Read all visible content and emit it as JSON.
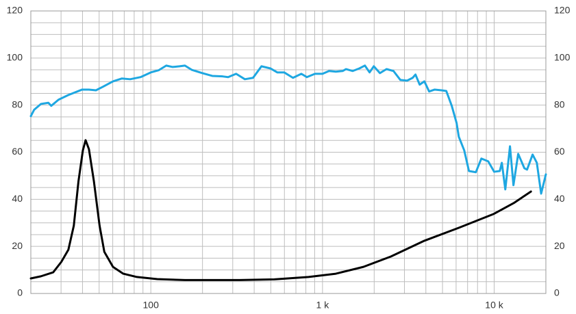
{
  "chart_data": {
    "type": "line",
    "xscale": "log",
    "grid": true,
    "xlim": [
      20,
      20000
    ],
    "xticks": [
      {
        "value": 100,
        "label": "100"
      },
      {
        "value": 1000,
        "label": "1 k"
      },
      {
        "value": 10000,
        "label": "10 k"
      }
    ],
    "x_minor_grid": [
      30,
      40,
      50,
      60,
      70,
      80,
      90,
      200,
      300,
      400,
      500,
      600,
      700,
      800,
      900,
      2000,
      3000,
      4000,
      5000,
      6000,
      7000,
      8000,
      9000
    ],
    "ylim": [
      0,
      120
    ],
    "yticks": [
      0,
      20,
      40,
      60,
      80,
      100,
      120
    ],
    "y_minor_grid": [
      5,
      10,
      15,
      25,
      30,
      35,
      45,
      50,
      55,
      65,
      70,
      75,
      85,
      90,
      95,
      105,
      110,
      115
    ],
    "y2lim": [
      0,
      120
    ],
    "y2ticks": [
      0,
      20,
      40,
      60,
      80,
      100,
      120
    ],
    "series": [
      {
        "color": "#1ea7e1",
        "x": [
          20,
          20.9,
          22.9,
          25.3,
          26.3,
          29.0,
          33.1,
          39.8,
          43.6,
          47.9,
          52.6,
          60.2,
          67.7,
          75.8,
          87.2,
          100,
          111,
          123,
          134,
          147,
          158,
          173,
          199,
          228,
          262,
          282,
          314,
          353,
          394,
          441,
          497,
          545,
          598,
          673,
          753,
          810,
          904,
          1000,
          1092,
          1196,
          1310,
          1370,
          1500,
          1640,
          1766,
          1880,
          1990,
          2160,
          2360,
          2590,
          2840,
          3110,
          3350,
          3480,
          3680,
          3920,
          4180,
          4500,
          4930,
          5260,
          5660,
          6040,
          6220,
          6690,
          7130,
          7820,
          8420,
          9230,
          10000,
          10780,
          11080,
          11610,
          12360,
          12950,
          13800,
          14990,
          15540,
          16740,
          17720,
          18770,
          20000
        ],
        "values": [
          75.3,
          78,
          80.5,
          81,
          79.7,
          82.3,
          84.3,
          86.6,
          86.6,
          86.3,
          87.8,
          90.1,
          91.3,
          91,
          91.9,
          93.9,
          94.8,
          96.8,
          96.2,
          96.5,
          96.8,
          95,
          93.6,
          92.4,
          92.2,
          91.9,
          93.3,
          91,
          91.6,
          96.5,
          95.6,
          93.9,
          93.9,
          91.6,
          93.3,
          91.9,
          93.3,
          93.3,
          94.5,
          94.2,
          94.5,
          95.3,
          94.5,
          95.6,
          96.8,
          93.9,
          96.5,
          93.6,
          95.3,
          94.5,
          90.7,
          90.4,
          91.6,
          93,
          88.7,
          90.1,
          85.8,
          86.6,
          86.3,
          86,
          79.7,
          72.4,
          66.6,
          60.8,
          52,
          51.5,
          57.3,
          56.1,
          51.7,
          52,
          55.5,
          44.2,
          62.5,
          46,
          59.3,
          53.2,
          52.6,
          59,
          55.5,
          42.4,
          50.6
        ]
      },
      {
        "color": "#000000",
        "axis": "y2",
        "x": [
          20,
          22.9,
          27,
          30.1,
          33.1,
          35.6,
          37.9,
          40.2,
          41.7,
          43.6,
          46.6,
          50.3,
          53.6,
          60.2,
          69.1,
          83.0,
          109,
          158,
          330,
          524,
          829,
          1196,
          1730,
          2500,
          3920,
          6220,
          9880,
          13000,
          16370
        ],
        "values": [
          6.4,
          7.3,
          9,
          13.4,
          18.6,
          28.8,
          47.7,
          60.8,
          65.1,
          61.3,
          47.7,
          28.8,
          17.7,
          11.3,
          8.4,
          7,
          6.1,
          5.7,
          5.7,
          6,
          7,
          8.4,
          11.3,
          15.7,
          22.4,
          27.9,
          33.7,
          38.4,
          43.3
        ]
      }
    ]
  }
}
